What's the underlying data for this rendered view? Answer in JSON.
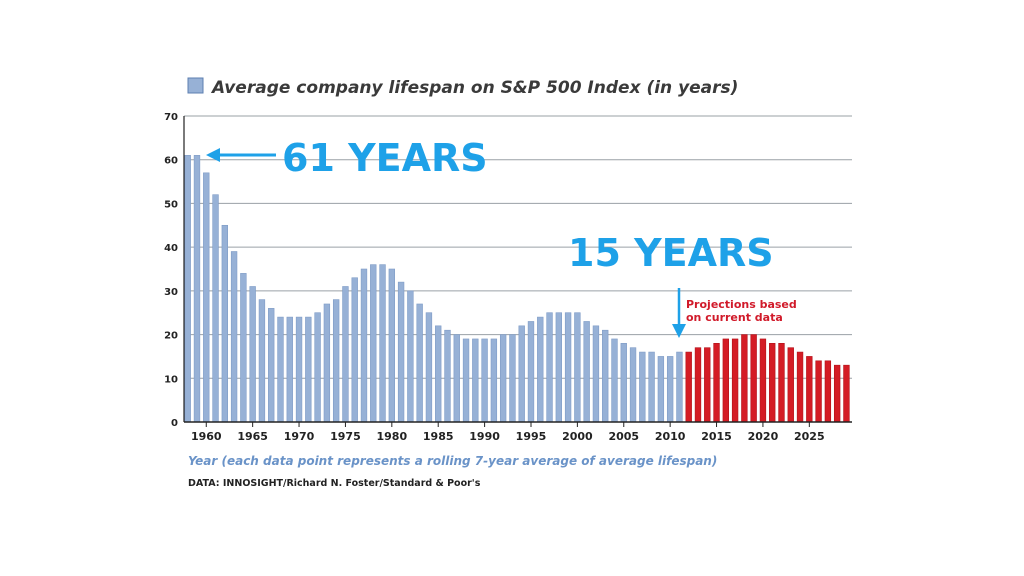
{
  "colors": {
    "historical_bar": "#97b1d6",
    "projection_bar": "#d41c25",
    "callout": "#1ea1e8",
    "grid": "#9aa0a6",
    "projection_text": "#d11a2a"
  },
  "chart_data": {
    "type": "bar",
    "title": "Average company lifespan on S&P 500 Index (in years)",
    "xlabel": "Year (each data point represents a rolling 7-year average of average lifespan)",
    "ylabel": "",
    "ylim": [
      0,
      70
    ],
    "yticks": [
      0,
      10,
      20,
      30,
      40,
      50,
      60,
      70
    ],
    "xticks": [
      1960,
      1965,
      1970,
      1975,
      1980,
      1985,
      1990,
      1995,
      2000,
      2005,
      2010,
      2015,
      2020,
      2025
    ],
    "grid": true,
    "legend": "top-left",
    "source": "DATA: INNOSIGHT/Richard N. Foster/Standard & Poor's",
    "series": [
      {
        "name": "Average company lifespan on S&P 500 Index (in years)",
        "x": [
          1958,
          1959,
          1960,
          1961,
          1962,
          1963,
          1964,
          1965,
          1966,
          1967,
          1968,
          1969,
          1970,
          1971,
          1972,
          1973,
          1974,
          1975,
          1976,
          1977,
          1978,
          1979,
          1980,
          1981,
          1982,
          1983,
          1984,
          1985,
          1986,
          1987,
          1988,
          1989,
          1990,
          1991,
          1992,
          1993,
          1994,
          1995,
          1996,
          1997,
          1998,
          1999,
          2000,
          2001,
          2002,
          2003,
          2004,
          2005,
          2006,
          2007,
          2008,
          2009,
          2010,
          2011
        ],
        "values": [
          61,
          61,
          57,
          52,
          45,
          39,
          34,
          31,
          28,
          26,
          24,
          24,
          24,
          24,
          25,
          27,
          28,
          31,
          33,
          35,
          36,
          36,
          35,
          32,
          30,
          27,
          25,
          22,
          21,
          20,
          19,
          19,
          19,
          19,
          20,
          20,
          22,
          23,
          24,
          25,
          25,
          25,
          25,
          23,
          22,
          21,
          19,
          18,
          17,
          16,
          16,
          15,
          15,
          16
        ]
      },
      {
        "name": "Projections based on current data",
        "x": [
          2012,
          2013,
          2014,
          2015,
          2016,
          2017,
          2018,
          2019,
          2020,
          2021,
          2022,
          2023,
          2024,
          2025,
          2026,
          2027,
          2028,
          2029
        ],
        "values": [
          16,
          17,
          17,
          18,
          19,
          19,
          20,
          20,
          19,
          18,
          18,
          17,
          16,
          15,
          14,
          14,
          13,
          13
        ]
      }
    ],
    "annotations": {
      "peak_label": "61 YEARS",
      "current_label": "15 YEARS",
      "projection_label_line1": "Projections based",
      "projection_label_line2": "on current data"
    }
  }
}
